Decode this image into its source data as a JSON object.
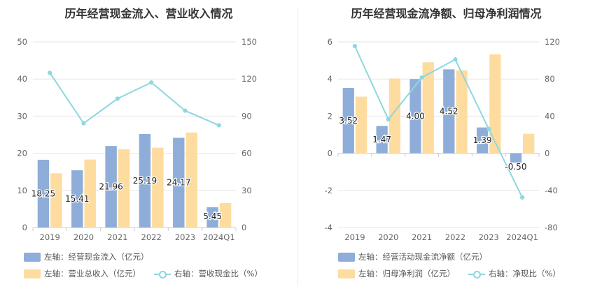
{
  "charts": [
    {
      "title": "历年经营现金流入、营业收入情况",
      "chart_data": {
        "type": "bar",
        "categories": [
          "2019",
          "2020",
          "2021",
          "2022",
          "2023",
          "2024Q1"
        ],
        "y_left": {
          "min": 0,
          "max": 50,
          "ticks": [
            0,
            10,
            20,
            30,
            40,
            50
          ]
        },
        "y_right": {
          "min": 0,
          "max": 150,
          "ticks": [
            0,
            30,
            60,
            90,
            120,
            150
          ]
        },
        "series": [
          {
            "name": "左轴：经营现金流入（亿元）",
            "kind": "bar",
            "axis": "left",
            "color": "#8fadd9",
            "values": [
              18.25,
              15.41,
              21.96,
              25.19,
              24.17,
              5.45
            ],
            "labels": [
              "18.25",
              "15.41",
              "21.96",
              "25.19",
              "24.17",
              "5.45"
            ]
          },
          {
            "name": "左轴：营业总收入（亿元）",
            "kind": "bar",
            "axis": "left",
            "color": "#fedc9f",
            "values": [
              14.6,
              18.3,
              21.1,
              21.5,
              25.6,
              6.6
            ]
          },
          {
            "name": "右轴：营收现金比（%）",
            "kind": "line",
            "axis": "right",
            "color": "#8dd8df",
            "values": [
              125,
              84.2,
              104.1,
              117.2,
              94.4,
              82.6
            ]
          }
        ]
      }
    },
    {
      "title": "历年经营现金流净额、归母净利润情况",
      "chart_data": {
        "type": "bar",
        "categories": [
          "2019",
          "2020",
          "2021",
          "2022",
          "2023",
          "2024Q1"
        ],
        "y_left": {
          "min": -4,
          "max": 6,
          "ticks": [
            -4,
            -2,
            0,
            2,
            4,
            6
          ]
        },
        "y_right": {
          "min": -80,
          "max": 120,
          "ticks": [
            -80,
            -40,
            0,
            40,
            80,
            120
          ]
        },
        "series": [
          {
            "name": "左轴：经营活动现金流净额（亿元）",
            "kind": "bar",
            "axis": "left",
            "color": "#8fadd9",
            "values": [
              3.52,
              1.47,
              4.0,
              4.52,
              1.39,
              -0.5
            ],
            "labels": [
              "3.52",
              "1.47",
              "4.00",
              "4.52",
              "1.39",
              "-0.50"
            ]
          },
          {
            "name": "左轴：归母净利润（亿元）",
            "kind": "bar",
            "axis": "left",
            "color": "#fedc9f",
            "values": [
              3.05,
              4.03,
              4.9,
              4.47,
              5.33,
              1.05
            ]
          },
          {
            "name": "右轴：净现比（%）",
            "kind": "line",
            "axis": "right",
            "color": "#8dd8df",
            "values": [
              115.4,
              36.5,
              81.6,
              101.1,
              26.1,
              -47.6
            ]
          }
        ]
      }
    }
  ]
}
